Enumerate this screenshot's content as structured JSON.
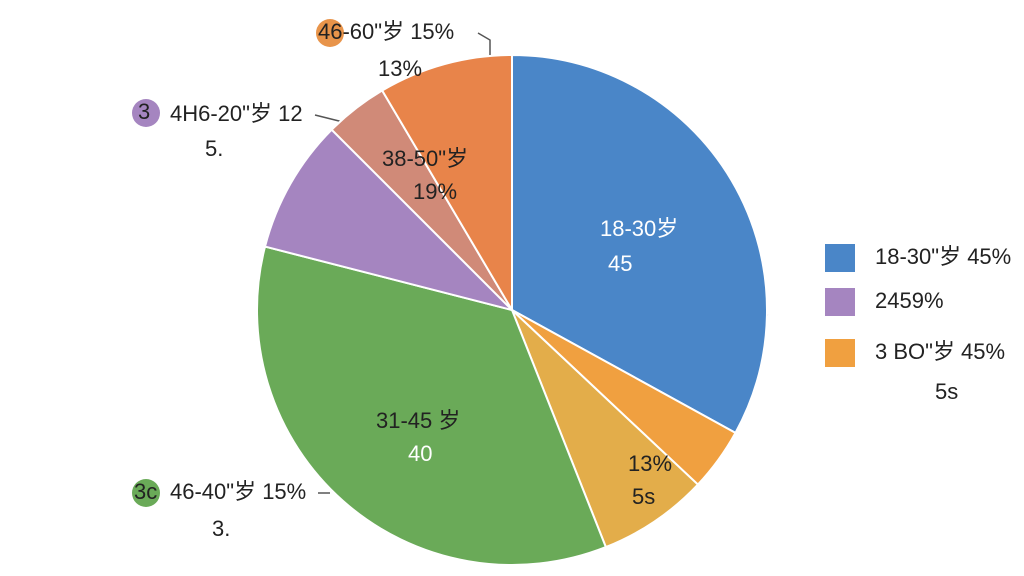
{
  "chart_data": {
    "type": "pie",
    "categories": [
      null,
      null,
      null,
      null,
      null,
      null,
      null
    ],
    "values": [
      33,
      4,
      7,
      35,
      8.5,
      4,
      8.5
    ],
    "colors": [
      "#4a86c8",
      "#f0a040",
      "#e3ad4a",
      "#6aaa58",
      "#a585c0",
      "#d08a78",
      "#e8844a"
    ],
    "annotations": [
      "46-60\"岁 15%",
      "13%",
      "3",
      "4H6-20\"岁 12",
      "5.",
      "38-50\"岁",
      "19%",
      "18-30岁",
      "45",
      "31-45 岁",
      "40",
      "13%",
      "5s",
      "3c",
      "46-40\"岁 15%",
      "3.",
      "5s"
    ],
    "legend": [
      {
        "label": "18-30\"岁 45%",
        "color": "#4a86c8"
      },
      {
        "label": "2459%",
        "color": "#a585c0"
      },
      {
        "label": "3 BO\"岁 45%",
        "color": "#f0a040"
      }
    ]
  }
}
